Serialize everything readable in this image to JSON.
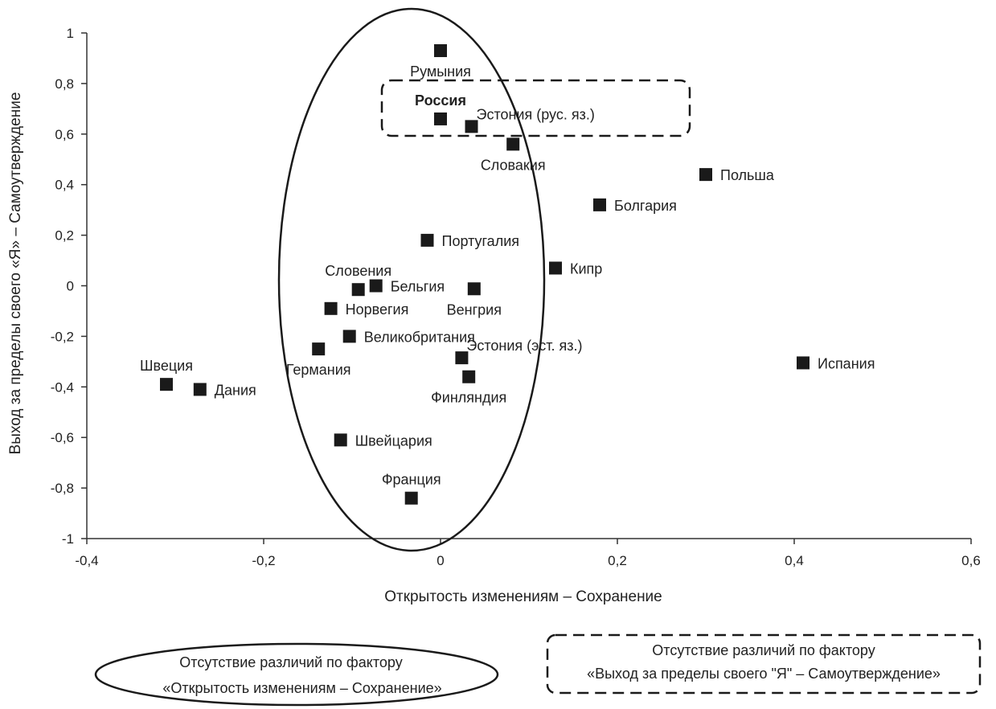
{
  "chart_data": {
    "type": "scatter",
    "xlabel": "Открытость изменениям – Сохранение",
    "ylabel": "Выход за пределы своего «Я» – Самоутверждение",
    "xlim": [
      -0.4,
      0.6
    ],
    "ylim": [
      -1,
      1
    ],
    "x_ticks": [
      -0.4,
      -0.2,
      0,
      0.2,
      0.4,
      0.6
    ],
    "x_tick_labels": [
      "-0,4",
      "-0,2",
      "0",
      "0,2",
      "0,4",
      "0,6"
    ],
    "y_ticks": [
      1,
      0.8,
      0.6,
      0.4,
      0.2,
      0,
      -0.2,
      -0.4,
      -0.6,
      -0.8,
      -1
    ],
    "y_tick_labels": [
      "1",
      "0,8",
      "0,6",
      "0,4",
      "0,2",
      "0",
      "-0,2",
      "-0,4",
      "-0,6",
      "-0,8",
      "-1"
    ],
    "grid": false,
    "marker_color": "#1a1a1a",
    "points": [
      {
        "label": "Румыния",
        "x": 0.0,
        "y": 0.93,
        "pos": "below"
      },
      {
        "label": "Россия",
        "x": 0.0,
        "y": 0.66,
        "pos": "above",
        "bold": true
      },
      {
        "label": "Эстония (рус. яз.)",
        "x": 0.035,
        "y": 0.63,
        "pos": "upright"
      },
      {
        "label": "Словакия",
        "x": 0.082,
        "y": 0.56,
        "pos": "below"
      },
      {
        "label": "Польша",
        "x": 0.3,
        "y": 0.44,
        "pos": "right"
      },
      {
        "label": "Болгария",
        "x": 0.18,
        "y": 0.32,
        "pos": "right"
      },
      {
        "label": "Португалия",
        "x": -0.015,
        "y": 0.18,
        "pos": "right"
      },
      {
        "label": "Кипр",
        "x": 0.13,
        "y": 0.07,
        "pos": "right"
      },
      {
        "label": "Словения",
        "x": -0.093,
        "y": -0.015,
        "pos": "above"
      },
      {
        "label": "Бельгия",
        "x": -0.073,
        "y": 0.0,
        "pos": "right"
      },
      {
        "label": "Венгрия",
        "x": 0.038,
        "y": -0.012,
        "pos": "below"
      },
      {
        "label": "Норвегия",
        "x": -0.124,
        "y": -0.09,
        "pos": "right"
      },
      {
        "label": "Великобритания",
        "x": -0.103,
        "y": -0.2,
        "pos": "right"
      },
      {
        "label": "Германия",
        "x": -0.138,
        "y": -0.25,
        "pos": "below"
      },
      {
        "label": "Эстония (эст. яз.)",
        "x": 0.024,
        "y": -0.285,
        "pos": "upright"
      },
      {
        "label": "Финляндия",
        "x": 0.032,
        "y": -0.36,
        "pos": "below"
      },
      {
        "label": "Швеция",
        "x": -0.31,
        "y": -0.39,
        "pos": "above"
      },
      {
        "label": "Дания",
        "x": -0.272,
        "y": -0.41,
        "pos": "right"
      },
      {
        "label": "Испания",
        "x": 0.41,
        "y": -0.305,
        "pos": "right"
      },
      {
        "label": "Швейцария",
        "x": -0.113,
        "y": -0.61,
        "pos": "right"
      },
      {
        "label": "Франция",
        "x": -0.033,
        "y": -0.84,
        "pos": "above"
      }
    ]
  },
  "legend": {
    "ellipse_line1": "Отсутствие различий по фактору",
    "ellipse_line2": "«Открытость изменениям – Сохранение»",
    "dashed_line1": "Отсутствие различий по фактору",
    "dashed_line2": "«Выход за пределы своего \"Я\" – Самоутверждение»"
  }
}
